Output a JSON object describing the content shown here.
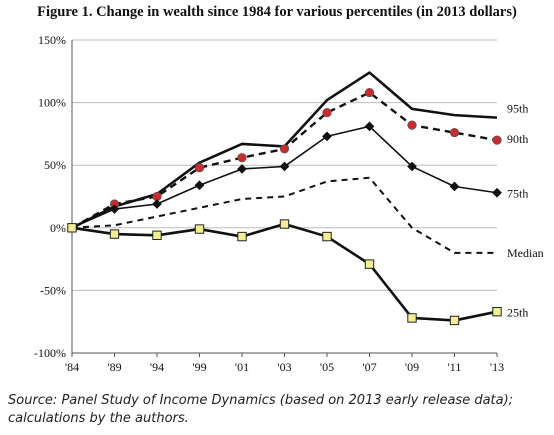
{
  "chart_data": {
    "type": "line",
    "title": "Figure 1. Change in wealth since 1984 for various percentiles (in 2013 dollars)",
    "source": "Source: Panel Study of Income Dynamics (based on 2013 early release data); calculations by the authors.",
    "categories": [
      "'84",
      "'89",
      "'94",
      "'99",
      "'01",
      "'03",
      "'05",
      "'07",
      "'09",
      "'11",
      "'13"
    ],
    "y_ticks": [
      "150%",
      "100%",
      "50%",
      "0%",
      "-50%",
      "-100%"
    ],
    "ylim": [
      -100,
      150
    ],
    "grid": "horizontal",
    "legend": "labels at right end of lines",
    "series": [
      {
        "name": "95th",
        "values": [
          0,
          17,
          27,
          52,
          67,
          65,
          102,
          124,
          95,
          90,
          88
        ],
        "style": "solid-thick",
        "marker": "none",
        "color": "#111111"
      },
      {
        "name": "90th",
        "values": [
          0,
          19,
          25,
          48,
          56,
          63,
          92,
          108,
          82,
          76,
          70
        ],
        "style": "dashed-thick",
        "marker": "circle",
        "color": "#d62728"
      },
      {
        "name": "75th",
        "values": [
          0,
          15,
          19,
          34,
          47,
          49,
          73,
          81,
          49,
          33,
          28
        ],
        "style": "solid-thin",
        "marker": "diamond",
        "color": "#111111"
      },
      {
        "name": "Median",
        "values": [
          0,
          2,
          9,
          16,
          23,
          25,
          37,
          40,
          0,
          -20,
          -20
        ],
        "style": "dashed",
        "marker": "none",
        "color": "#111111"
      },
      {
        "name": "25th",
        "values": [
          0,
          -5,
          -6,
          -1,
          -7,
          3,
          -7,
          -29,
          -72,
          -74,
          -67
        ],
        "style": "solid-thick",
        "marker": "square",
        "color": "#f2ef8f"
      }
    ]
  }
}
